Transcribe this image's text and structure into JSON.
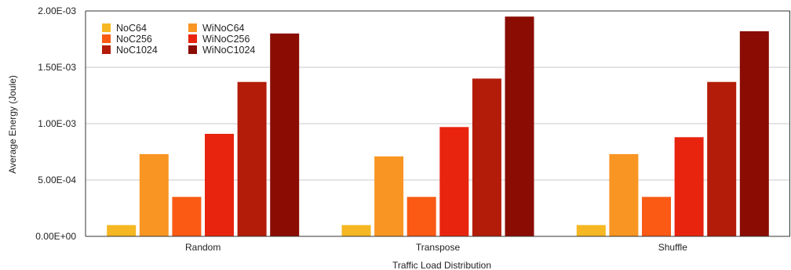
{
  "chart_data": {
    "type": "bar",
    "title": "",
    "xlabel": "Traffic Load Distribution",
    "ylabel": "Average Energy (Joule)",
    "categories": [
      "Random",
      "Transpose",
      "Shuffle"
    ],
    "ylim": [
      0,
      0.002
    ],
    "yticks": [
      {
        "value": 0,
        "label": "0.00E+00"
      },
      {
        "value": 0.0005,
        "label": "5.00E-04"
      },
      {
        "value": 0.001,
        "label": "1.00E-03"
      },
      {
        "value": 0.0015,
        "label": "1.50E-03"
      },
      {
        "value": 0.002,
        "label": "2.00E-03"
      }
    ],
    "grid": true,
    "legend_position": "top-left",
    "series": [
      {
        "name": "NoC64",
        "color": "#f5b722",
        "values": [
          0.0001,
          0.0001,
          0.0001
        ]
      },
      {
        "name": "WiNoC64",
        "color": "#f99522",
        "values": [
          0.00073,
          0.00071,
          0.00073
        ]
      },
      {
        "name": "NoC256",
        "color": "#fa5a14",
        "values": [
          0.00035,
          0.00035,
          0.00035
        ]
      },
      {
        "name": "WiNoC256",
        "color": "#e8240f",
        "values": [
          0.00091,
          0.00097,
          0.00088
        ]
      },
      {
        "name": "NoC1024",
        "color": "#b31c08",
        "values": [
          0.00137,
          0.0014,
          0.00137
        ]
      },
      {
        "name": "WiNoC1024",
        "color": "#8a0c03",
        "values": [
          0.0018,
          0.00195,
          0.00182
        ]
      }
    ]
  }
}
